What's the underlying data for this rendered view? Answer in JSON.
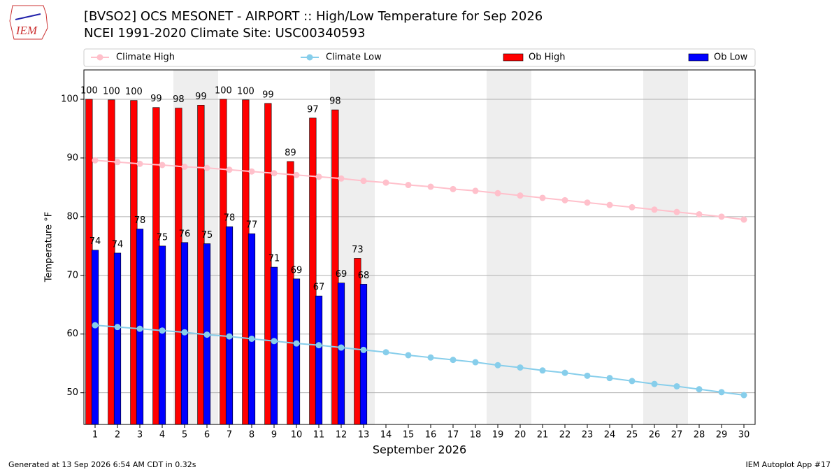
{
  "logo": "IEM",
  "footer_left": "Generated at 13 Sep 2026 6:54 AM CDT in 0.32s",
  "footer_right": "IEM Autoplot App #17",
  "chart_data": {
    "type": "bar",
    "title": "[BVSO2] OCS MESONET - AIRPORT :: High/Low Temperature for Sep 2026",
    "subtitle": "NCEI 1991-2020 Climate Site: USC00340593",
    "xlabel": "September 2026",
    "ylabel": "Temperature °F",
    "x": [
      1,
      2,
      3,
      4,
      5,
      6,
      7,
      8,
      9,
      10,
      11,
      12,
      13,
      14,
      15,
      16,
      17,
      18,
      19,
      20,
      21,
      22,
      23,
      24,
      25,
      26,
      27,
      28,
      29,
      30
    ],
    "xlim": [
      0.5,
      30.5
    ],
    "xticks": [
      1,
      2,
      3,
      4,
      5,
      6,
      7,
      8,
      9,
      10,
      11,
      12,
      13,
      14,
      15,
      16,
      17,
      18,
      19,
      20,
      21,
      22,
      23,
      24,
      25,
      26,
      27,
      28,
      29,
      30
    ],
    "ylim": [
      44.6,
      105
    ],
    "yticks": [
      50,
      60,
      70,
      80,
      90,
      100
    ],
    "grid": true,
    "legend": "top",
    "series": [
      {
        "name": "Climate High",
        "type": "line",
        "color": "#ffc0cb",
        "values": [
          89.6,
          89.3,
          89.0,
          88.8,
          88.5,
          88.3,
          88.0,
          87.7,
          87.4,
          87.1,
          86.8,
          86.5,
          86.1,
          85.8,
          85.4,
          85.1,
          84.7,
          84.4,
          84.0,
          83.6,
          83.2,
          82.8,
          82.4,
          82.0,
          81.6,
          81.2,
          80.8,
          80.4,
          80.0,
          79.5
        ]
      },
      {
        "name": "Climate Low",
        "type": "line",
        "color": "#87ceeb",
        "values": [
          61.5,
          61.2,
          60.9,
          60.6,
          60.3,
          59.9,
          59.6,
          59.2,
          58.8,
          58.4,
          58.1,
          57.7,
          57.3,
          56.9,
          56.4,
          56.0,
          55.6,
          55.2,
          54.7,
          54.3,
          53.8,
          53.4,
          52.9,
          52.5,
          52.0,
          51.5,
          51.1,
          50.6,
          50.1,
          49.6
        ]
      },
      {
        "name": "Ob High",
        "type": "bar",
        "color": "#ff0000",
        "values": [
          100,
          99.9,
          99.8,
          98.6,
          98.5,
          99.0,
          100,
          99.9,
          99.3,
          89.4,
          96.8,
          98.2,
          72.9,
          null,
          null,
          null,
          null,
          null,
          null,
          null,
          null,
          null,
          null,
          null,
          null,
          null,
          null,
          null,
          null,
          null
        ],
        "value_labels": [
          "100",
          "100",
          "100",
          "99",
          "98",
          "99",
          "100",
          "100",
          "99",
          "89",
          "97",
          "98",
          "73",
          null,
          null,
          null,
          null,
          null,
          null,
          null,
          null,
          null,
          null,
          null,
          null,
          null,
          null,
          null,
          null,
          null
        ]
      },
      {
        "name": "Ob Low",
        "type": "bar",
        "color": "#0000ff",
        "values": [
          74.3,
          73.8,
          77.9,
          75.0,
          75.6,
          75.4,
          78.3,
          77.1,
          71.4,
          69.4,
          66.5,
          68.7,
          68.5,
          null,
          null,
          null,
          null,
          null,
          null,
          null,
          null,
          null,
          null,
          null,
          null,
          null,
          null,
          null,
          null,
          null
        ],
        "value_labels": [
          "74",
          "74",
          "78",
          "75",
          "76",
          "75",
          "78",
          "77",
          "71",
          "69",
          "67",
          "69",
          "68",
          null,
          null,
          null,
          null,
          null,
          null,
          null,
          null,
          null,
          null,
          null,
          null,
          null,
          null,
          null,
          null,
          null
        ]
      }
    ]
  }
}
